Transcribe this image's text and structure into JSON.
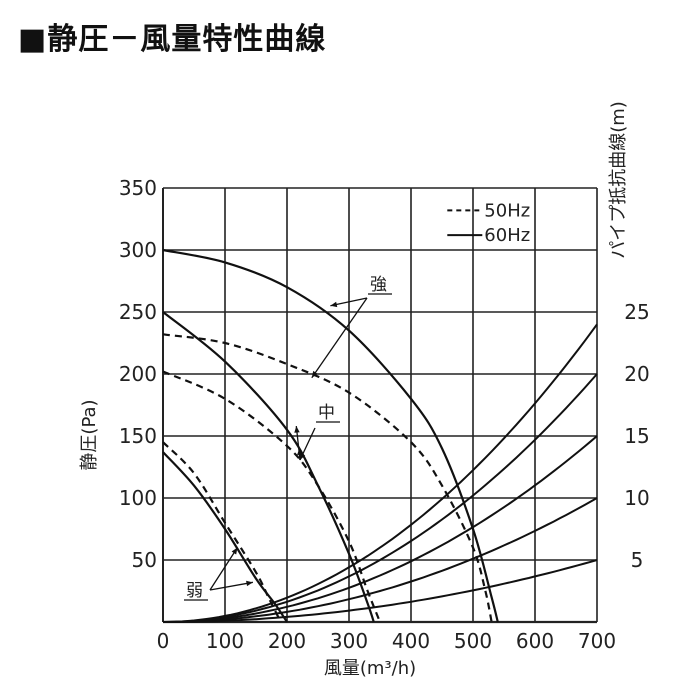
{
  "title": "■静圧－風量特性曲線",
  "chart_data": {
    "type": "line",
    "xlabel": "風量(m³/h)",
    "ylabel": "静圧(Pa)",
    "y2label": "パイプ抵抗曲線(m)",
    "xlim": [
      0,
      700
    ],
    "ylim": [
      0,
      350
    ],
    "x_ticks": [
      "0",
      "100",
      "200",
      "300",
      "400",
      "500",
      "600",
      "700"
    ],
    "y_ticks": [
      "50",
      "100",
      "150",
      "200",
      "250",
      "300",
      "350"
    ],
    "y2_ticks": [
      "5",
      "10",
      "15",
      "20",
      "25"
    ],
    "grid": true,
    "legend": {
      "position": "top-right",
      "entries": [
        {
          "label": "50Hz",
          "style": "dashed"
        },
        {
          "label": "60Hz",
          "style": "solid"
        }
      ]
    },
    "annotations": [
      "強",
      "中",
      "弱"
    ],
    "series": [
      {
        "speed": "強",
        "freq": "60Hz",
        "style": "solid",
        "points": [
          [
            0,
            300
          ],
          [
            100,
            290
          ],
          [
            200,
            270
          ],
          [
            300,
            235
          ],
          [
            400,
            180
          ],
          [
            450,
            140
          ],
          [
            500,
            75
          ],
          [
            530,
            20
          ],
          [
            540,
            0
          ]
        ]
      },
      {
        "speed": "強",
        "freq": "50Hz",
        "style": "dashed",
        "points": [
          [
            0,
            232
          ],
          [
            100,
            225
          ],
          [
            200,
            208
          ],
          [
            300,
            185
          ],
          [
            400,
            145
          ],
          [
            450,
            110
          ],
          [
            500,
            60
          ],
          [
            520,
            25
          ],
          [
            530,
            0
          ]
        ]
      },
      {
        "speed": "中",
        "freq": "60Hz",
        "style": "solid",
        "points": [
          [
            0,
            250
          ],
          [
            100,
            210
          ],
          [
            200,
            155
          ],
          [
            250,
            110
          ],
          [
            300,
            55
          ],
          [
            330,
            15
          ],
          [
            340,
            0
          ]
        ]
      },
      {
        "speed": "中",
        "freq": "50Hz",
        "style": "dashed",
        "points": [
          [
            0,
            202
          ],
          [
            100,
            180
          ],
          [
            200,
            142
          ],
          [
            250,
            110
          ],
          [
            300,
            65
          ],
          [
            330,
            25
          ],
          [
            350,
            0
          ]
        ]
      },
      {
        "speed": "弱",
        "freq": "60Hz",
        "style": "solid",
        "points": [
          [
            0,
            137
          ],
          [
            50,
            110
          ],
          [
            100,
            75
          ],
          [
            150,
            35
          ],
          [
            180,
            15
          ],
          [
            200,
            0
          ]
        ]
      },
      {
        "speed": "弱",
        "freq": "50Hz",
        "style": "dashed",
        "points": [
          [
            0,
            145
          ],
          [
            50,
            120
          ],
          [
            100,
            80
          ],
          [
            150,
            40
          ],
          [
            170,
            20
          ],
          [
            190,
            0
          ]
        ]
      }
    ],
    "pipe_curves": [
      {
        "y_at_700": 240
      },
      {
        "y_at_700": 200
      },
      {
        "y_at_700": 150
      },
      {
        "y_at_700": 100
      },
      {
        "y_at_700": 50
      }
    ]
  }
}
